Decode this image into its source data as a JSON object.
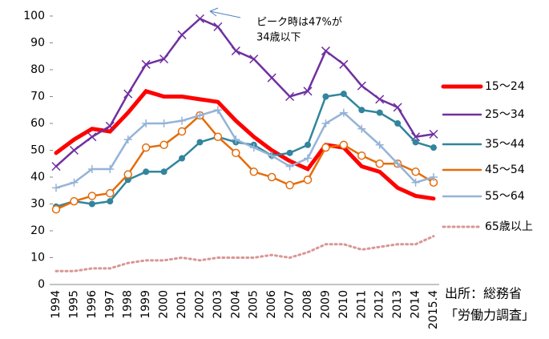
{
  "chart_data": {
    "type": "line",
    "categories": [
      "1994",
      "1995",
      "1996",
      "1997",
      "1998",
      "1999",
      "2000",
      "2001",
      "2002",
      "2003",
      "2004",
      "2005",
      "2006",
      "2007",
      "2008",
      "2009",
      "2010",
      "2011",
      "2012",
      "2013",
      "2014",
      "2015.4"
    ],
    "series": [
      {
        "name": "15～24",
        "color": "#ff0000",
        "marker": "none",
        "values": [
          49,
          54,
          58,
          57,
          64,
          72,
          70,
          70,
          69,
          68,
          61,
          55,
          50,
          46,
          43,
          52,
          51,
          44,
          42,
          36,
          33,
          32
        ]
      },
      {
        "name": "25～34",
        "color": "#7030a0",
        "marker": "x",
        "values": [
          44,
          50,
          55,
          59,
          71,
          82,
          84,
          93,
          99,
          96,
          87,
          84,
          77,
          70,
          72,
          87,
          82,
          74,
          69,
          66,
          55,
          56
        ]
      },
      {
        "name": "35～44",
        "color": "#31859c",
        "marker": "circle",
        "values": [
          29,
          31,
          30,
          31,
          39,
          42,
          42,
          47,
          53,
          55,
          53,
          52,
          48,
          49,
          52,
          70,
          71,
          65,
          64,
          60,
          53,
          51
        ]
      },
      {
        "name": "45～54",
        "color": "#e46c0a",
        "marker": "open-circle",
        "values": [
          28,
          31,
          33,
          34,
          41,
          51,
          52,
          57,
          63,
          55,
          49,
          42,
          40,
          37,
          39,
          51,
          52,
          48,
          45,
          45,
          42,
          38
        ]
      },
      {
        "name": "55～64",
        "color": "#95b3d7",
        "marker": "plus",
        "values": [
          36,
          38,
          43,
          43,
          54,
          60,
          60,
          61,
          63,
          65,
          54,
          51,
          48,
          44,
          47,
          60,
          64,
          58,
          52,
          45,
          38,
          40
        ]
      },
      {
        "name": "65歳以上",
        "color": "#d99694",
        "marker": "dotted",
        "values": [
          5,
          5,
          6,
          6,
          8,
          9,
          9,
          10,
          9,
          10,
          10,
          10,
          11,
          10,
          12,
          15,
          15,
          13,
          14,
          15,
          15,
          18
        ]
      }
    ],
    "ylim": [
      0,
      100
    ],
    "yticks": [
      0,
      10,
      20,
      30,
      40,
      50,
      60,
      70,
      80,
      90,
      100
    ],
    "annotation": [
      "ピーク時は47%が",
      "34歳以下"
    ],
    "source": [
      "出所：総務省",
      "「労働力調査」"
    ]
  }
}
